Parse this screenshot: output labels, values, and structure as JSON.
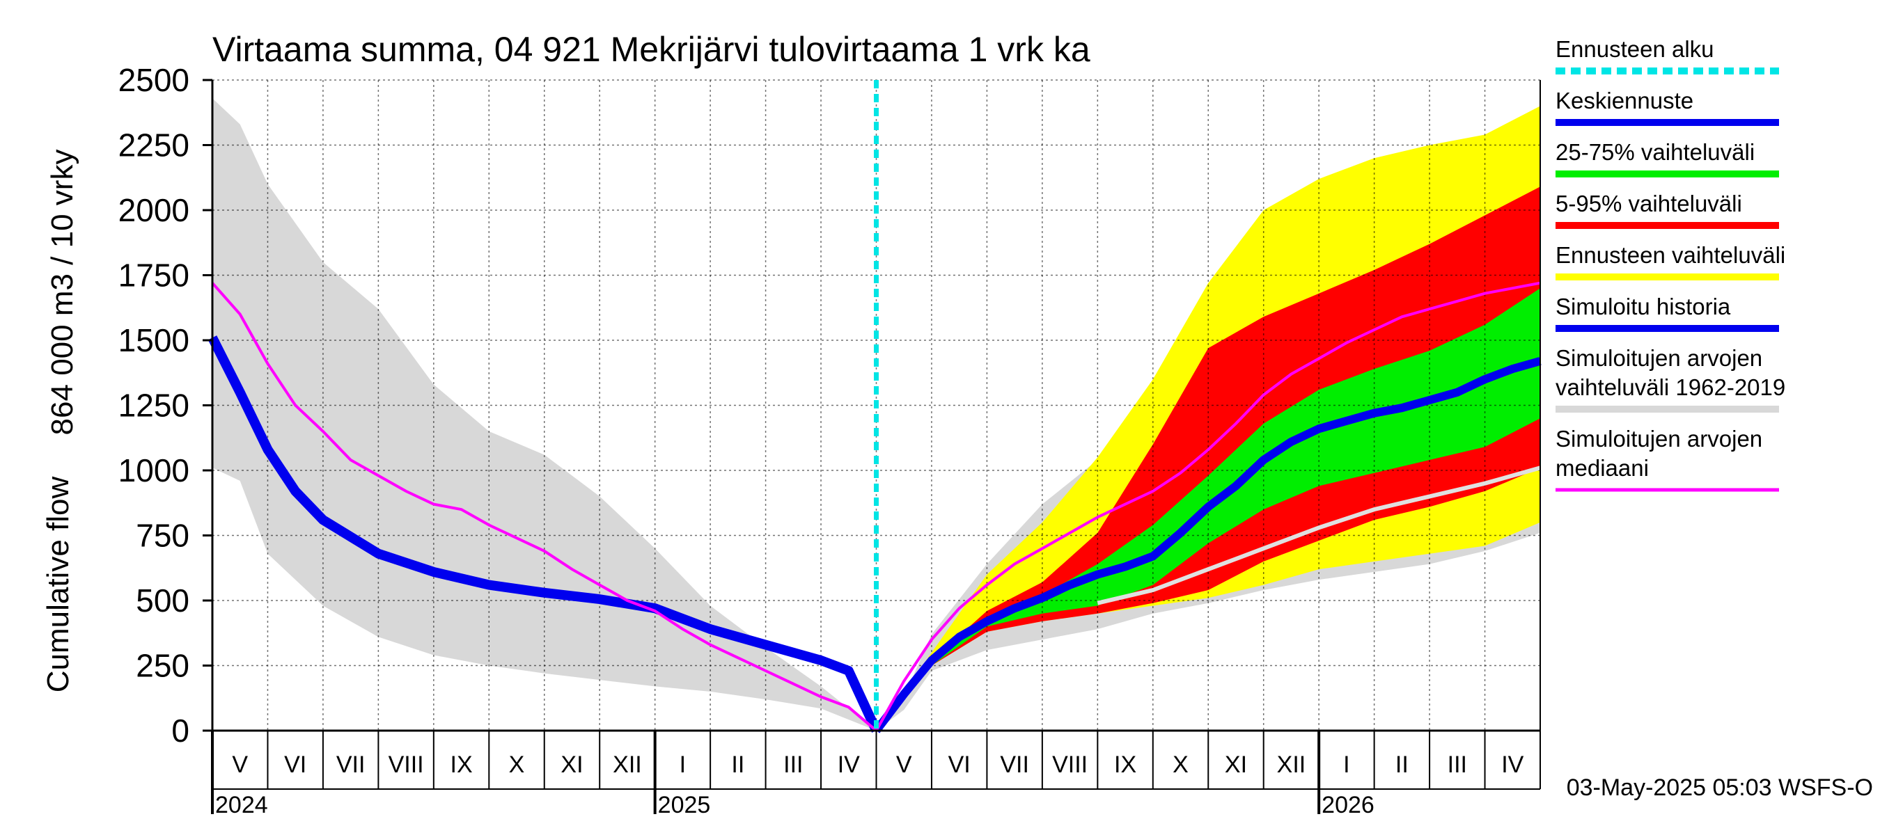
{
  "chart_data": {
    "type": "area",
    "title": "Virtaama summa, 04 921 Mekrijärvi tulovirtaama 1 vrk ka",
    "ylabel_top": "864 000 m3 / 10 vrky",
    "ylabel_bottom": "Cumulative flow",
    "ylim": [
      0,
      2500
    ],
    "yticks": [
      0,
      250,
      500,
      750,
      1000,
      1250,
      1500,
      1750,
      2000,
      2250,
      2500
    ],
    "xlim": [
      0,
      24
    ],
    "month_labels": [
      "V",
      "VI",
      "VII",
      "VIII",
      "IX",
      "X",
      "XI",
      "XII",
      "I",
      "II",
      "III",
      "IV",
      "V",
      "VI",
      "VII",
      "VIII",
      "IX",
      "X",
      "XI",
      "XII",
      "I",
      "II",
      "III",
      "IV"
    ],
    "year_labels": [
      {
        "x": 0,
        "label": "2024"
      },
      {
        "x": 8,
        "label": "2025"
      },
      {
        "x": 20,
        "label": "2026"
      }
    ],
    "forecast_start": 12,
    "grid": true,
    "legend_placement": "right",
    "footer": "03-May-2025 05:03 WSFS-O",
    "colors": {
      "forecast_start": "#00e5e5",
      "mean_forecast": "#0000ee",
      "band_25_75": "#00ee00",
      "band_5_95": "#ff0000",
      "forecast_range": "#ffff00",
      "simulated_history": "#0000ee",
      "historic_range": "#d8d8d8",
      "historic_median": "#ff00ff"
    },
    "legend": [
      {
        "key": "forecast_start",
        "lines": [
          "Ennusteen alku"
        ],
        "style": "dashed"
      },
      {
        "key": "mean_forecast",
        "lines": [
          "Keskiennuste"
        ],
        "style": "solid"
      },
      {
        "key": "band_25_75",
        "lines": [
          "25-75% vaihteluväli"
        ],
        "style": "solid"
      },
      {
        "key": "band_5_95",
        "lines": [
          "5-95% vaihteluväli"
        ],
        "style": "solid"
      },
      {
        "key": "forecast_range",
        "lines": [
          "Ennusteen vaihteluväli"
        ],
        "style": "solid"
      },
      {
        "key": "simulated_history",
        "lines": [
          "Simuloitu historia"
        ],
        "style": "solid"
      },
      {
        "key": "historic_range",
        "lines": [
          "Simuloitujen arvojen",
          "vaihteluväli 1962-2019"
        ],
        "style": "solid"
      },
      {
        "key": "historic_median",
        "lines": [
          "Simuloitujen arvojen",
          "mediaani"
        ],
        "style": "solid"
      }
    ],
    "series": {
      "historic_range_upper": [
        [
          0,
          2430
        ],
        [
          0.5,
          2330
        ],
        [
          1,
          2100
        ],
        [
          2,
          1800
        ],
        [
          3,
          1620
        ],
        [
          4,
          1330
        ],
        [
          5,
          1150
        ],
        [
          6,
          1060
        ],
        [
          7,
          900
        ],
        [
          8,
          700
        ],
        [
          9,
          480
        ],
        [
          10,
          320
        ],
        [
          11,
          170
        ],
        [
          12,
          0
        ],
        [
          12.5,
          130
        ],
        [
          13,
          370
        ],
        [
          14,
          640
        ],
        [
          15,
          870
        ],
        [
          16,
          1040
        ],
        [
          17,
          1250
        ],
        [
          18,
          1500
        ],
        [
          19,
          1760
        ],
        [
          20,
          1960
        ],
        [
          21,
          2080
        ],
        [
          22,
          2170
        ],
        [
          23,
          2250
        ],
        [
          24,
          2400
        ]
      ],
      "historic_range_lower": [
        [
          0,
          1010
        ],
        [
          0.5,
          960
        ],
        [
          1,
          680
        ],
        [
          2,
          480
        ],
        [
          3,
          360
        ],
        [
          4,
          290
        ],
        [
          5,
          250
        ],
        [
          6,
          220
        ],
        [
          7,
          195
        ],
        [
          8,
          170
        ],
        [
          9,
          150
        ],
        [
          10,
          120
        ],
        [
          11,
          85
        ],
        [
          12,
          0
        ],
        [
          12.5,
          80
        ],
        [
          13,
          230
        ],
        [
          14,
          310
        ],
        [
          15,
          350
        ],
        [
          16,
          390
        ],
        [
          17,
          450
        ],
        [
          18,
          490
        ],
        [
          19,
          540
        ],
        [
          20,
          580
        ],
        [
          21,
          610
        ],
        [
          22,
          640
        ],
        [
          23,
          690
        ],
        [
          24,
          760
        ]
      ],
      "forecast_range_upper": [
        [
          12,
          0
        ],
        [
          13,
          300
        ],
        [
          14,
          600
        ],
        [
          15,
          800
        ],
        [
          16,
          1050
        ],
        [
          17,
          1350
        ],
        [
          18,
          1720
        ],
        [
          19,
          2000
        ],
        [
          20,
          2120
        ],
        [
          21,
          2200
        ],
        [
          22,
          2250
        ],
        [
          23,
          2290
        ],
        [
          24,
          2400
        ]
      ],
      "forecast_range_lower": [
        [
          12,
          0
        ],
        [
          13,
          250
        ],
        [
          14,
          380
        ],
        [
          15,
          420
        ],
        [
          16,
          450
        ],
        [
          17,
          480
        ],
        [
          18,
          510
        ],
        [
          19,
          560
        ],
        [
          20,
          620
        ],
        [
          21,
          650
        ],
        [
          22,
          680
        ],
        [
          23,
          710
        ],
        [
          24,
          800
        ]
      ],
      "band_5_95_upper": [
        [
          12,
          0
        ],
        [
          13,
          270
        ],
        [
          14,
          460
        ],
        [
          15,
          570
        ],
        [
          16,
          760
        ],
        [
          17,
          1100
        ],
        [
          18,
          1470
        ],
        [
          19,
          1590
        ],
        [
          20,
          1680
        ],
        [
          21,
          1770
        ],
        [
          22,
          1870
        ],
        [
          23,
          1980
        ],
        [
          24,
          2090
        ]
      ],
      "band_5_95_lower": [
        [
          12,
          0
        ],
        [
          13,
          250
        ],
        [
          14,
          380
        ],
        [
          15,
          420
        ],
        [
          16,
          450
        ],
        [
          17,
          490
        ],
        [
          18,
          540
        ],
        [
          19,
          650
        ],
        [
          20,
          730
        ],
        [
          21,
          810
        ],
        [
          22,
          860
        ],
        [
          23,
          920
        ],
        [
          24,
          1010
        ]
      ],
      "band_25_75_upper": [
        [
          12,
          0
        ],
        [
          13,
          260
        ],
        [
          14,
          420
        ],
        [
          15,
          520
        ],
        [
          16,
          640
        ],
        [
          17,
          790
        ],
        [
          18,
          980
        ],
        [
          19,
          1180
        ],
        [
          20,
          1310
        ],
        [
          21,
          1390
        ],
        [
          22,
          1460
        ],
        [
          23,
          1560
        ],
        [
          24,
          1700
        ]
      ],
      "band_25_75_lower": [
        [
          12,
          0
        ],
        [
          13,
          250
        ],
        [
          14,
          400
        ],
        [
          15,
          450
        ],
        [
          16,
          480
        ],
        [
          17,
          560
        ],
        [
          18,
          720
        ],
        [
          19,
          850
        ],
        [
          20,
          940
        ],
        [
          21,
          990
        ],
        [
          22,
          1040
        ],
        [
          23,
          1090
        ],
        [
          24,
          1200
        ]
      ],
      "mean_forecast": [
        [
          12,
          0
        ],
        [
          12.5,
          140
        ],
        [
          13,
          270
        ],
        [
          13.5,
          360
        ],
        [
          14,
          420
        ],
        [
          14.5,
          470
        ],
        [
          15,
          510
        ],
        [
          15.5,
          560
        ],
        [
          16,
          600
        ],
        [
          16.5,
          630
        ],
        [
          17,
          670
        ],
        [
          17.5,
          760
        ],
        [
          18,
          860
        ],
        [
          18.5,
          940
        ],
        [
          19,
          1040
        ],
        [
          19.5,
          1110
        ],
        [
          20,
          1160
        ],
        [
          20.5,
          1190
        ],
        [
          21,
          1220
        ],
        [
          21.5,
          1240
        ],
        [
          22,
          1270
        ],
        [
          22.5,
          1300
        ],
        [
          23,
          1350
        ],
        [
          23.5,
          1390
        ],
        [
          24,
          1420
        ]
      ],
      "simulated_history": [
        [
          0,
          1510
        ],
        [
          0.5,
          1300
        ],
        [
          1,
          1080
        ],
        [
          1.5,
          920
        ],
        [
          2,
          810
        ],
        [
          3,
          680
        ],
        [
          4,
          610
        ],
        [
          5,
          560
        ],
        [
          6,
          530
        ],
        [
          7,
          505
        ],
        [
          8,
          470
        ],
        [
          8.5,
          430
        ],
        [
          9,
          390
        ],
        [
          10,
          330
        ],
        [
          11,
          270
        ],
        [
          11.5,
          230
        ],
        [
          12,
          0
        ]
      ],
      "historic_median": [
        [
          0,
          1720
        ],
        [
          0.5,
          1600
        ],
        [
          1,
          1410
        ],
        [
          1.5,
          1250
        ],
        [
          2,
          1150
        ],
        [
          2.5,
          1040
        ],
        [
          3,
          980
        ],
        [
          3.5,
          920
        ],
        [
          4,
          870
        ],
        [
          4.5,
          850
        ],
        [
          5,
          790
        ],
        [
          5.5,
          740
        ],
        [
          6,
          690
        ],
        [
          6.5,
          620
        ],
        [
          7,
          560
        ],
        [
          7.5,
          500
        ],
        [
          8,
          460
        ],
        [
          8.5,
          390
        ],
        [
          9,
          330
        ],
        [
          9.5,
          280
        ],
        [
          10,
          230
        ],
        [
          10.5,
          180
        ],
        [
          11,
          130
        ],
        [
          11.5,
          90
        ],
        [
          12,
          0
        ],
        [
          12.5,
          190
        ],
        [
          13,
          350
        ],
        [
          13.5,
          470
        ],
        [
          14,
          560
        ],
        [
          14.5,
          640
        ],
        [
          15,
          700
        ],
        [
          15.5,
          760
        ],
        [
          16,
          820
        ],
        [
          16.5,
          870
        ],
        [
          17,
          920
        ],
        [
          17.5,
          990
        ],
        [
          18,
          1080
        ],
        [
          18.5,
          1180
        ],
        [
          19,
          1290
        ],
        [
          19.5,
          1370
        ],
        [
          20,
          1430
        ],
        [
          20.5,
          1490
        ],
        [
          21,
          1540
        ],
        [
          21.5,
          1590
        ],
        [
          22,
          1620
        ],
        [
          22.5,
          1650
        ],
        [
          23,
          1680
        ],
        [
          23.5,
          1700
        ],
        [
          24,
          1720
        ]
      ],
      "historic_median_forecast": [
        [
          16,
          490
        ],
        [
          17,
          540
        ],
        [
          18,
          620
        ],
        [
          19,
          700
        ],
        [
          20,
          780
        ],
        [
          21,
          850
        ],
        [
          22,
          900
        ],
        [
          23,
          950
        ],
        [
          24,
          1010
        ]
      ]
    }
  }
}
